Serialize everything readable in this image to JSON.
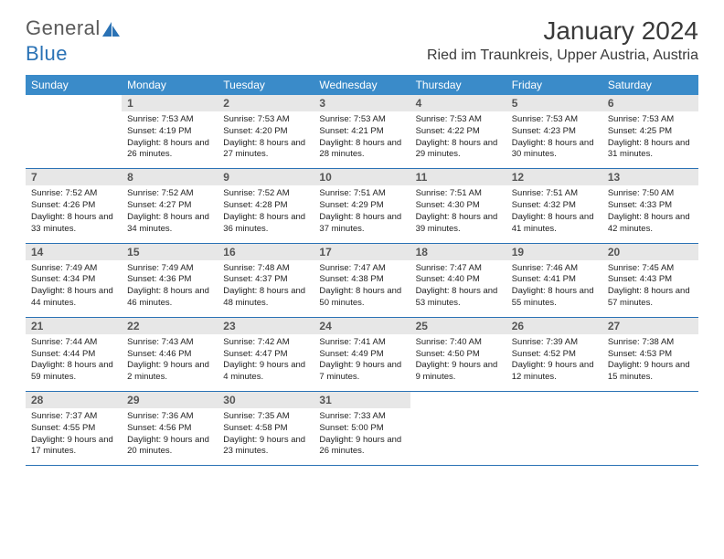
{
  "brand": {
    "word1": "General",
    "word2": "Blue"
  },
  "title": "January 2024",
  "location": "Ried im Traunkreis, Upper Austria, Austria",
  "colors": {
    "header_bg": "#3a8bc9",
    "row_border": "#2a72b5",
    "daynum_bg": "#e7e7e7",
    "text": "#222222",
    "logo_gray": "#5a5a5a",
    "logo_blue": "#2a72b5"
  },
  "typography": {
    "month_fontsize": 28,
    "location_fontsize": 16,
    "weekday_fontsize": 12,
    "daynum_fontsize": 12,
    "body_fontsize": 9.5
  },
  "weekdays": [
    "Sunday",
    "Monday",
    "Tuesday",
    "Wednesday",
    "Thursday",
    "Friday",
    "Saturday"
  ],
  "weeks": [
    [
      {
        "n": "",
        "sr": "",
        "ss": "",
        "dl": ""
      },
      {
        "n": "1",
        "sr": "7:53 AM",
        "ss": "4:19 PM",
        "dl": "8 hours and 26 minutes."
      },
      {
        "n": "2",
        "sr": "7:53 AM",
        "ss": "4:20 PM",
        "dl": "8 hours and 27 minutes."
      },
      {
        "n": "3",
        "sr": "7:53 AM",
        "ss": "4:21 PM",
        "dl": "8 hours and 28 minutes."
      },
      {
        "n": "4",
        "sr": "7:53 AM",
        "ss": "4:22 PM",
        "dl": "8 hours and 29 minutes."
      },
      {
        "n": "5",
        "sr": "7:53 AM",
        "ss": "4:23 PM",
        "dl": "8 hours and 30 minutes."
      },
      {
        "n": "6",
        "sr": "7:53 AM",
        "ss": "4:25 PM",
        "dl": "8 hours and 31 minutes."
      }
    ],
    [
      {
        "n": "7",
        "sr": "7:52 AM",
        "ss": "4:26 PM",
        "dl": "8 hours and 33 minutes."
      },
      {
        "n": "8",
        "sr": "7:52 AM",
        "ss": "4:27 PM",
        "dl": "8 hours and 34 minutes."
      },
      {
        "n": "9",
        "sr": "7:52 AM",
        "ss": "4:28 PM",
        "dl": "8 hours and 36 minutes."
      },
      {
        "n": "10",
        "sr": "7:51 AM",
        "ss": "4:29 PM",
        "dl": "8 hours and 37 minutes."
      },
      {
        "n": "11",
        "sr": "7:51 AM",
        "ss": "4:30 PM",
        "dl": "8 hours and 39 minutes."
      },
      {
        "n": "12",
        "sr": "7:51 AM",
        "ss": "4:32 PM",
        "dl": "8 hours and 41 minutes."
      },
      {
        "n": "13",
        "sr": "7:50 AM",
        "ss": "4:33 PM",
        "dl": "8 hours and 42 minutes."
      }
    ],
    [
      {
        "n": "14",
        "sr": "7:49 AM",
        "ss": "4:34 PM",
        "dl": "8 hours and 44 minutes."
      },
      {
        "n": "15",
        "sr": "7:49 AM",
        "ss": "4:36 PM",
        "dl": "8 hours and 46 minutes."
      },
      {
        "n": "16",
        "sr": "7:48 AM",
        "ss": "4:37 PM",
        "dl": "8 hours and 48 minutes."
      },
      {
        "n": "17",
        "sr": "7:47 AM",
        "ss": "4:38 PM",
        "dl": "8 hours and 50 minutes."
      },
      {
        "n": "18",
        "sr": "7:47 AM",
        "ss": "4:40 PM",
        "dl": "8 hours and 53 minutes."
      },
      {
        "n": "19",
        "sr": "7:46 AM",
        "ss": "4:41 PM",
        "dl": "8 hours and 55 minutes."
      },
      {
        "n": "20",
        "sr": "7:45 AM",
        "ss": "4:43 PM",
        "dl": "8 hours and 57 minutes."
      }
    ],
    [
      {
        "n": "21",
        "sr": "7:44 AM",
        "ss": "4:44 PM",
        "dl": "8 hours and 59 minutes."
      },
      {
        "n": "22",
        "sr": "7:43 AM",
        "ss": "4:46 PM",
        "dl": "9 hours and 2 minutes."
      },
      {
        "n": "23",
        "sr": "7:42 AM",
        "ss": "4:47 PM",
        "dl": "9 hours and 4 minutes."
      },
      {
        "n": "24",
        "sr": "7:41 AM",
        "ss": "4:49 PM",
        "dl": "9 hours and 7 minutes."
      },
      {
        "n": "25",
        "sr": "7:40 AM",
        "ss": "4:50 PM",
        "dl": "9 hours and 9 minutes."
      },
      {
        "n": "26",
        "sr": "7:39 AM",
        "ss": "4:52 PM",
        "dl": "9 hours and 12 minutes."
      },
      {
        "n": "27",
        "sr": "7:38 AM",
        "ss": "4:53 PM",
        "dl": "9 hours and 15 minutes."
      }
    ],
    [
      {
        "n": "28",
        "sr": "7:37 AM",
        "ss": "4:55 PM",
        "dl": "9 hours and 17 minutes."
      },
      {
        "n": "29",
        "sr": "7:36 AM",
        "ss": "4:56 PM",
        "dl": "9 hours and 20 minutes."
      },
      {
        "n": "30",
        "sr": "7:35 AM",
        "ss": "4:58 PM",
        "dl": "9 hours and 23 minutes."
      },
      {
        "n": "31",
        "sr": "7:33 AM",
        "ss": "5:00 PM",
        "dl": "9 hours and 26 minutes."
      },
      {
        "n": "",
        "sr": "",
        "ss": "",
        "dl": ""
      },
      {
        "n": "",
        "sr": "",
        "ss": "",
        "dl": ""
      },
      {
        "n": "",
        "sr": "",
        "ss": "",
        "dl": ""
      }
    ]
  ],
  "labels": {
    "sunrise": "Sunrise:",
    "sunset": "Sunset:",
    "daylight": "Daylight:"
  }
}
